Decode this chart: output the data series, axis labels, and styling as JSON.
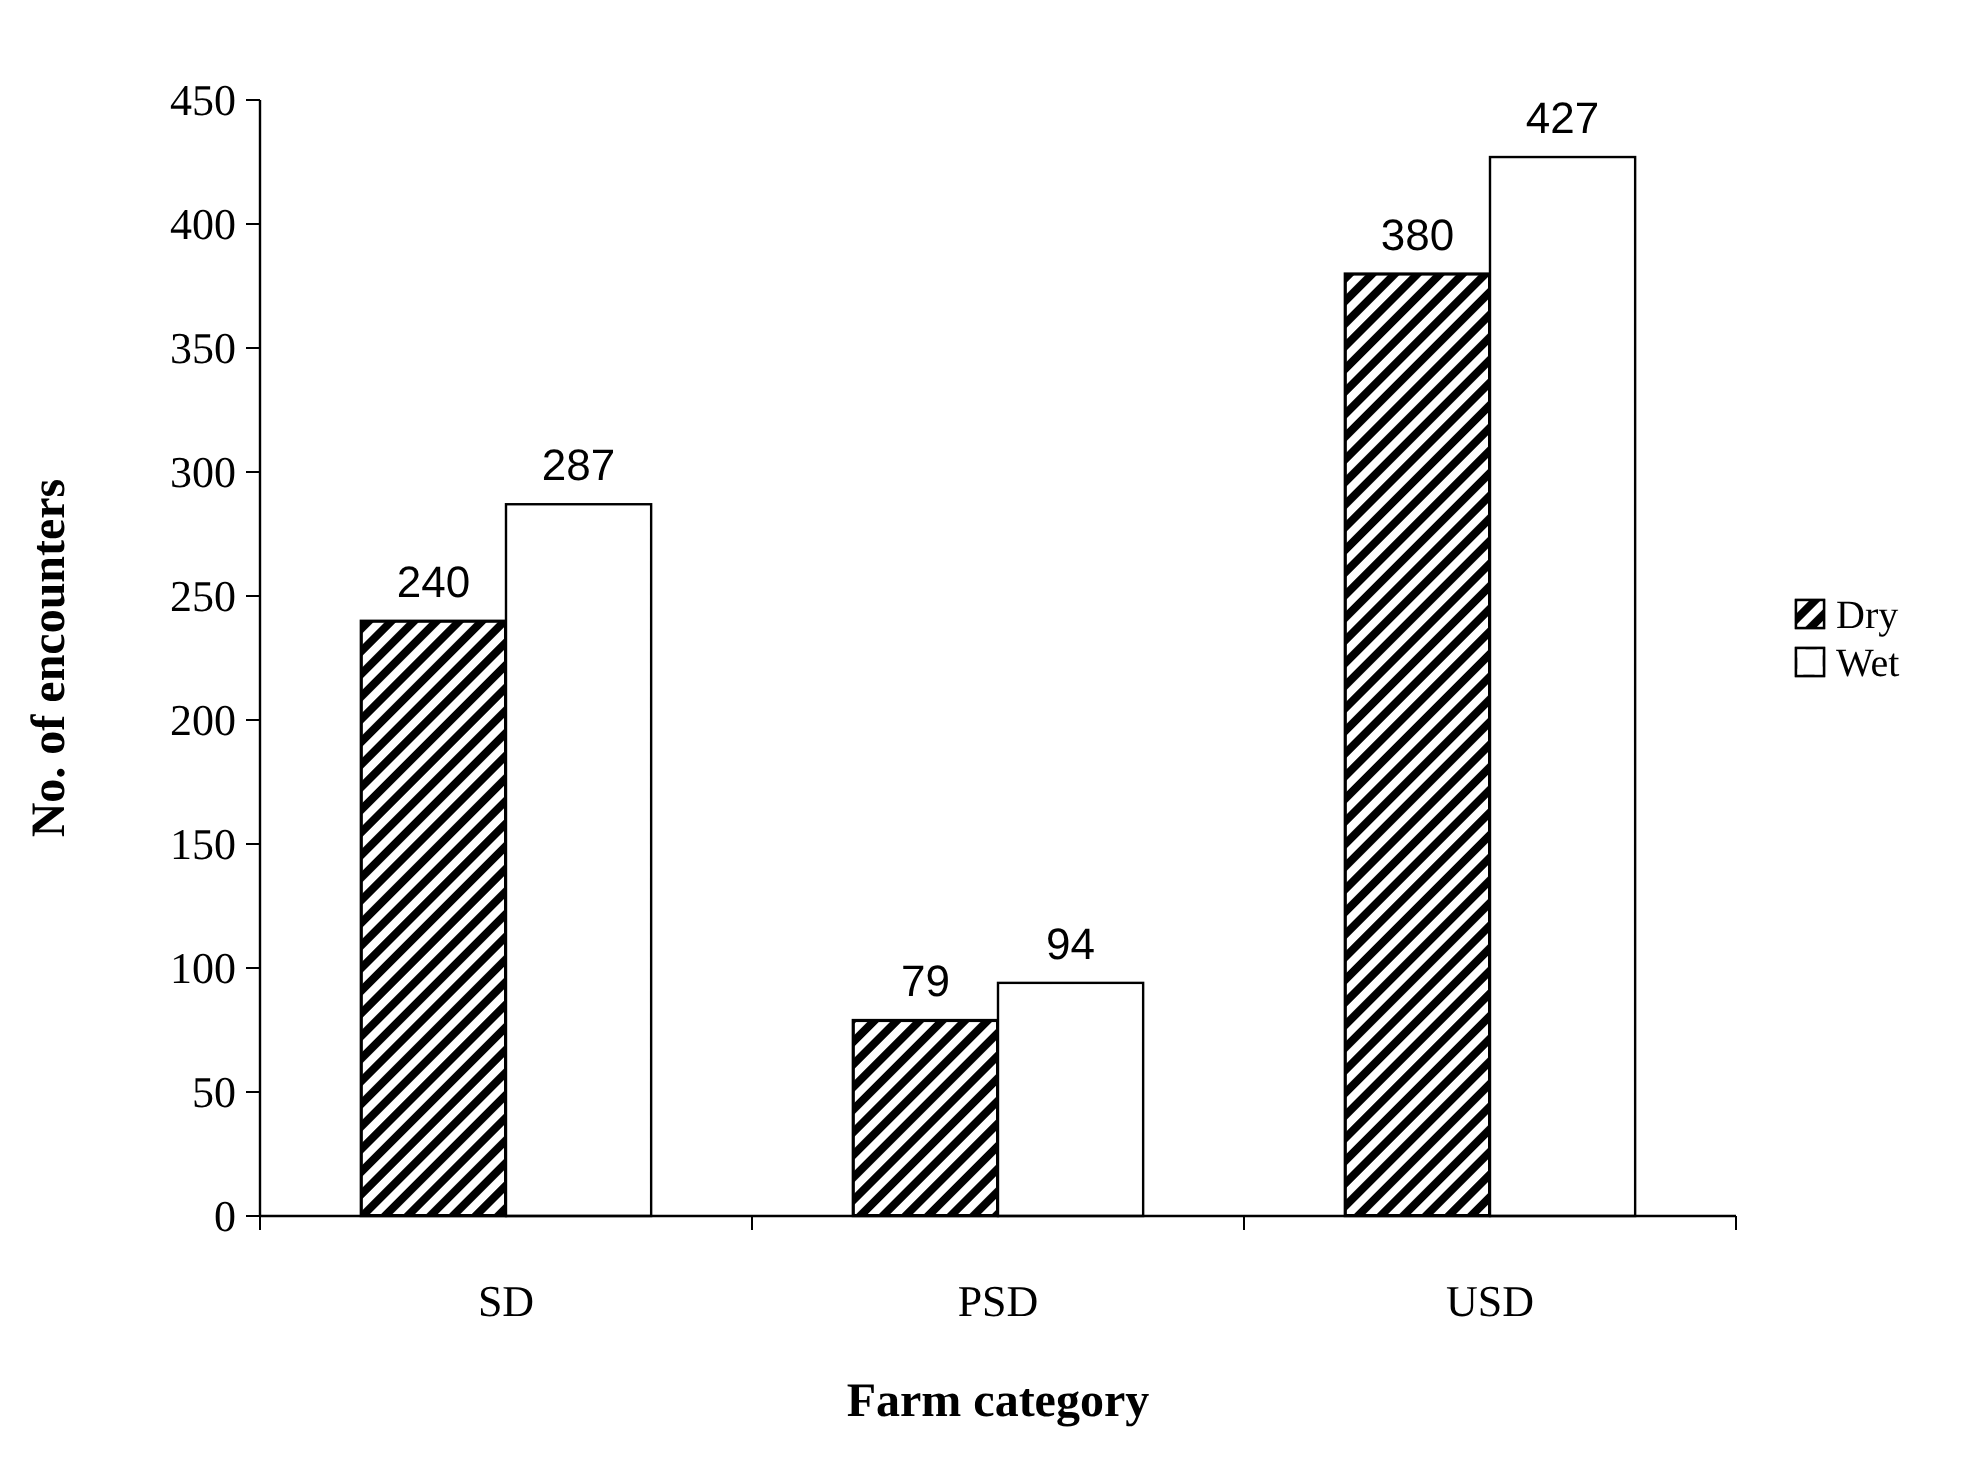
{
  "chart_data": {
    "type": "bar",
    "xlabel": "Farm category",
    "ylabel": "No. of encounters",
    "categories": [
      "SD",
      "PSD",
      "USD"
    ],
    "series": [
      {
        "name": "Dry",
        "color": "#000000",
        "values": [
          240,
          79,
          380
        ]
      },
      {
        "name": "Wet",
        "color": "#ffffff",
        "values": [
          287,
          94,
          427
        ]
      }
    ],
    "ylim": [
      0,
      450
    ],
    "yticks": [
      0,
      50,
      100,
      150,
      200,
      250,
      300,
      350,
      400,
      450
    ],
    "data_labels": true,
    "grid": false,
    "legend": "right"
  }
}
